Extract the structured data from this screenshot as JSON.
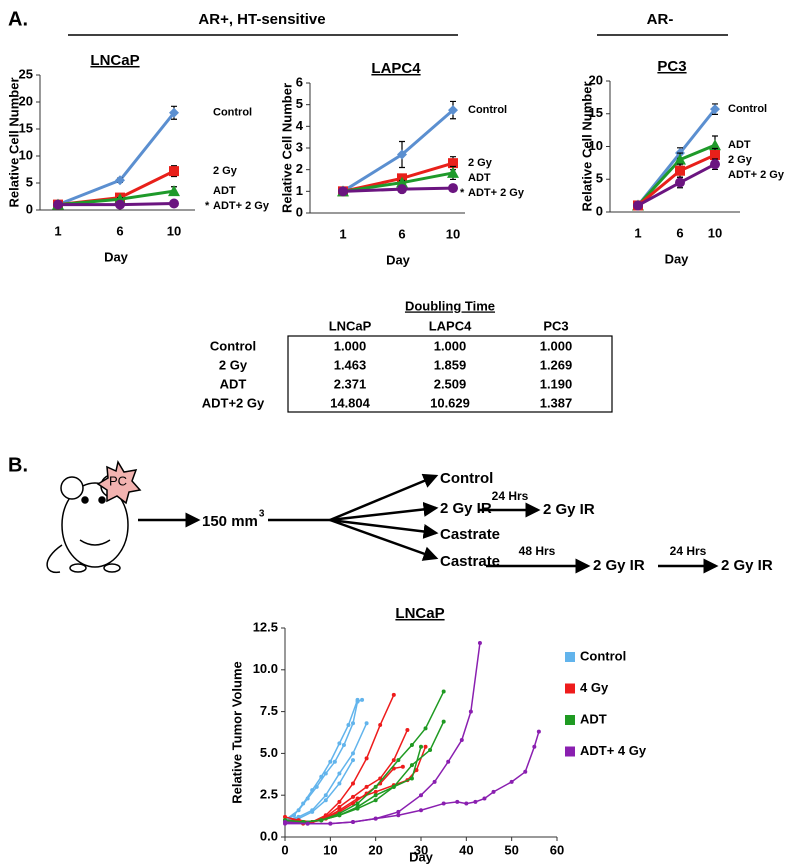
{
  "panel_a": {
    "label": "A.",
    "group_headers": [
      "AR+, HT-sensitive",
      "AR-"
    ]
  },
  "chart_data": [
    {
      "type": "line",
      "title": "LNCaP",
      "y_label": "Relative Cell Number",
      "x_label": "Day",
      "categories": [
        "1",
        "6",
        "10"
      ],
      "ylim": [
        0,
        25
      ],
      "yticks": [
        0,
        5,
        10,
        15,
        20,
        25
      ],
      "series": [
        {
          "name": "Control",
          "color": "#5b8fd0",
          "marker": "diamond",
          "values": [
            1,
            5.5,
            18
          ],
          "errors": [
            0,
            0.4,
            1.2
          ]
        },
        {
          "name": "2 Gy",
          "color": "#e8201a",
          "marker": "square",
          "values": [
            1,
            2.3,
            7.2
          ],
          "errors": [
            0,
            0.3,
            1.0
          ]
        },
        {
          "name": "ADT",
          "color": "#1e9a2a",
          "marker": "triangle",
          "values": [
            1,
            2,
            3.5
          ],
          "errors": [
            0,
            0.3,
            0.8
          ]
        },
        {
          "name": "ADT+ 2 Gy",
          "color": "#6b1580",
          "marker": "circle",
          "values": [
            1,
            1,
            1.2
          ],
          "errors": [
            0,
            0.1,
            0.2
          ],
          "note": "*"
        }
      ]
    },
    {
      "type": "line",
      "title": "LAPC4",
      "y_label": "Relative Cell Number",
      "x_label": "Day",
      "categories": [
        "1",
        "6",
        "10"
      ],
      "ylim": [
        0,
        6
      ],
      "yticks": [
        0,
        1,
        2,
        3,
        4,
        5,
        6
      ],
      "series": [
        {
          "name": "Control",
          "color": "#5b8fd0",
          "marker": "diamond",
          "values": [
            1,
            2.7,
            4.75
          ],
          "errors": [
            0,
            0.6,
            0.4
          ]
        },
        {
          "name": "2 Gy",
          "color": "#e8201a",
          "marker": "square",
          "values": [
            1,
            1.6,
            2.3
          ],
          "errors": [
            0,
            0.1,
            0.3
          ]
        },
        {
          "name": "ADT",
          "color": "#1e9a2a",
          "marker": "triangle",
          "values": [
            1,
            1.4,
            1.85
          ],
          "errors": [
            0,
            0.1,
            0.3
          ]
        },
        {
          "name": "ADT+ 2 Gy",
          "color": "#6b1580",
          "marker": "circle",
          "values": [
            1,
            1.1,
            1.15
          ],
          "errors": [
            0,
            0.05,
            0.05
          ],
          "note": "*"
        }
      ]
    },
    {
      "type": "line",
      "title": "PC3",
      "y_label": "Relative Cell Number",
      "x_label": "Day",
      "categories": [
        "1",
        "6",
        "10"
      ],
      "ylim": [
        0,
        20
      ],
      "yticks": [
        0,
        5,
        10,
        15,
        20
      ],
      "series": [
        {
          "name": "Control",
          "color": "#5b8fd0",
          "marker": "diamond",
          "values": [
            1,
            9,
            15.7
          ],
          "errors": [
            0,
            0.8,
            0.8
          ]
        },
        {
          "name": "ADT",
          "color": "#1e9a2a",
          "marker": "triangle",
          "values": [
            1,
            8,
            10.2
          ],
          "errors": [
            0,
            1.0,
            1.4
          ]
        },
        {
          "name": "2 Gy",
          "color": "#e8201a",
          "marker": "square",
          "values": [
            1,
            6.3,
            8.7
          ],
          "errors": [
            0,
            1.0,
            1.0
          ]
        },
        {
          "name": "ADT+ 2 Gy",
          "color": "#6b1580",
          "marker": "circle",
          "values": [
            1,
            4.5,
            7.3
          ],
          "errors": [
            0,
            0.8,
            0.8
          ]
        }
      ]
    },
    {
      "type": "line",
      "title": "LNCaP",
      "y_label": "Relative Tumor Volume",
      "x_label": "Day",
      "xlim": [
        0,
        60
      ],
      "xticks": [
        0,
        10,
        20,
        30,
        40,
        50,
        60
      ],
      "ylim": [
        0,
        12.5
      ],
      "yticks": [
        {
          "value": 0,
          "label": "0.0"
        },
        2.5,
        {
          "value": 5,
          "label": "5.0"
        },
        7.5,
        {
          "value": 10,
          "label": "10.0"
        },
        12.5
      ],
      "groups": [
        {
          "name": "Control",
          "color": "#62b4ec",
          "lines": [
            {
              "x": [
                0,
                3,
                5,
                7,
                9,
                11,
                13,
                15,
                16,
                17
              ],
              "values": [
                1,
                1.6,
                2.3,
                3.0,
                3.8,
                4.5,
                5.5,
                6.8,
                8.1,
                8.2
              ]
            },
            {
              "x": [
                0,
                2,
                4,
                6,
                8,
                10,
                12,
                14,
                16
              ],
              "values": [
                1,
                1.3,
                2,
                2.8,
                3.6,
                4.5,
                5.6,
                6.7,
                8.2
              ]
            },
            {
              "x": [
                0,
                3,
                6,
                9,
                12,
                15,
                18
              ],
              "values": [
                1,
                1.2,
                1.6,
                2.5,
                3.8,
                5,
                6.8
              ]
            },
            {
              "x": [
                0,
                3,
                6,
                9,
                12,
                15
              ],
              "values": [
                1,
                1.1,
                1.5,
                2.2,
                3.2,
                4.6
              ]
            }
          ]
        },
        {
          "name": "4 Gy",
          "color": "#ee1c1c",
          "lines": [
            {
              "x": [
                0,
                3,
                6,
                9,
                12,
                15,
                18,
                21,
                24
              ],
              "values": [
                1,
                1,
                0.9,
                1.3,
                2.1,
                3.2,
                4.7,
                6.7,
                8.5
              ]
            },
            {
              "x": [
                0,
                3,
                6,
                9,
                12,
                15,
                18,
                21,
                24,
                27
              ],
              "values": [
                1,
                0.9,
                0.9,
                1.2,
                1.8,
                2.4,
                3,
                3.5,
                4.6,
                6.4
              ]
            },
            {
              "x": [
                0,
                4,
                8,
                12,
                16,
                20,
                24,
                27,
                29,
                31
              ],
              "values": [
                1,
                0.8,
                1,
                1.6,
                2.3,
                2.7,
                3.1,
                3.4,
                4,
                5.4
              ]
            },
            {
              "x": [
                0,
                3,
                6,
                9,
                12,
                15,
                18,
                21,
                24,
                26
              ],
              "values": [
                1.2,
                1,
                0.9,
                1.1,
                1.5,
                2,
                2.6,
                3.2,
                4.1,
                4.2
              ]
            }
          ]
        },
        {
          "name": "ADT",
          "color": "#1f9a22",
          "lines": [
            {
              "x": [
                0,
                4,
                8,
                12,
                16,
                20,
                25,
                28,
                31,
                35
              ],
              "values": [
                1,
                0.9,
                1,
                1.4,
                2,
                3,
                4.6,
                5.5,
                6.5,
                8.7
              ]
            },
            {
              "x": [
                0,
                4,
                8,
                12,
                16,
                20,
                24,
                28,
                32,
                35
              ],
              "values": [
                1,
                0.9,
                1,
                1.3,
                1.7,
                2.2,
                3,
                4.3,
                5.2,
                6.9
              ]
            },
            {
              "x": [
                0,
                4,
                8,
                12,
                16,
                20,
                24,
                28,
                30
              ],
              "values": [
                1,
                0.9,
                1,
                1.3,
                1.8,
                2.5,
                3.0,
                3.5,
                5.4
              ]
            }
          ]
        },
        {
          "name": "ADT+ 4 Gy",
          "color": "#8a1fb0",
          "lines": [
            {
              "x": [
                0,
                5,
                10,
                15,
                20,
                25,
                30,
                33,
                36,
                39,
                41,
                43
              ],
              "values": [
                0.9,
                0.8,
                0.8,
                0.9,
                1.1,
                1.5,
                2.5,
                3.3,
                4.5,
                5.8,
                7.5,
                11.6
              ]
            },
            {
              "x": [
                0,
                5,
                10,
                15,
                20,
                25,
                30,
                35,
                38,
                40,
                42,
                44,
                46,
                50,
                53,
                55,
                56
              ],
              "values": [
                0.8,
                0.8,
                0.8,
                0.9,
                1.1,
                1.3,
                1.6,
                2.0,
                2.1,
                2.0,
                2.1,
                2.3,
                2.7,
                3.3,
                3.9,
                5.4,
                6.3
              ]
            }
          ]
        }
      ]
    }
  ],
  "table": {
    "title": "Doubling Time",
    "columns": [
      "LNCaP",
      "LAPC4",
      "PC3"
    ],
    "rows": [
      {
        "label": "Control",
        "cells": [
          "1.000",
          "1.000",
          "1.000"
        ]
      },
      {
        "label": "2 Gy",
        "cells": [
          "1.463",
          "1.859",
          "1.269"
        ]
      },
      {
        "label": "ADT",
        "cells": [
          "2.371",
          "2.509",
          "1.190"
        ]
      },
      {
        "label": "ADT+2 Gy",
        "cells": [
          "14.804",
          "10.629",
          "1.387"
        ]
      }
    ]
  },
  "panel_b": {
    "label": "B.",
    "tumor_label": "PC",
    "start_volume": "150 mm",
    "start_volume_sup": "3",
    "arms": [
      "Control",
      "2 Gy IR",
      "Castrate",
      "Castrate"
    ],
    "steps": [
      {
        "interval": "24 Hrs",
        "treatment": "2 Gy IR"
      },
      {
        "interval": "48 Hrs",
        "treatment": "2 Gy IR"
      },
      {
        "interval": "24 Hrs",
        "treatment": "2 Gy IR"
      }
    ]
  }
}
